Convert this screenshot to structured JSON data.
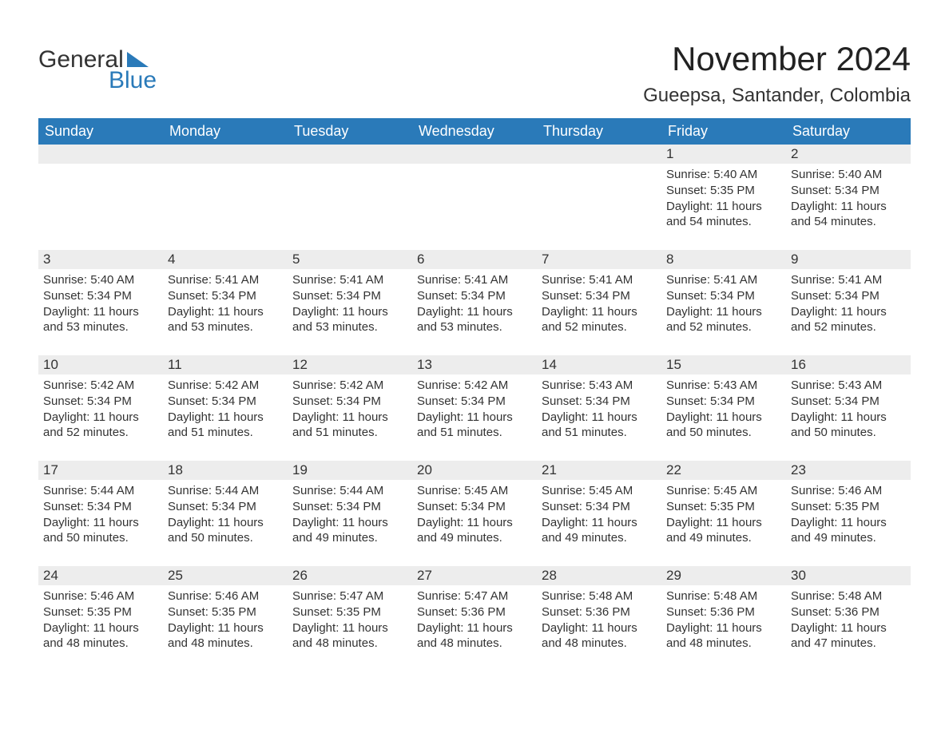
{
  "logo": {
    "word1": "General",
    "word2": "Blue",
    "shape_color": "#2a7ab9",
    "text_color_dark": "#333333",
    "text_color_blue": "#2a7ab9"
  },
  "title": "November 2024",
  "location": "Gueepsa, Santander, Colombia",
  "colors": {
    "header_bg": "#2a7ab9",
    "header_text": "#ffffff",
    "daynum_bg": "#ededed",
    "body_text": "#333333",
    "rule": "#2a7ab9",
    "page_bg": "#ffffff"
  },
  "fonts": {
    "family": "Arial, Helvetica, sans-serif",
    "title_size_pt": 32,
    "location_size_pt": 18,
    "dayhead_size_pt": 14,
    "daynum_size_pt": 13,
    "body_size_pt": 11
  },
  "calendar": {
    "type": "table",
    "columns": [
      "Sunday",
      "Monday",
      "Tuesday",
      "Wednesday",
      "Thursday",
      "Friday",
      "Saturday"
    ],
    "weeks": [
      [
        null,
        null,
        null,
        null,
        null,
        {
          "n": "1",
          "sunrise": "5:40 AM",
          "sunset": "5:35 PM",
          "daylight": "11 hours and 54 minutes."
        },
        {
          "n": "2",
          "sunrise": "5:40 AM",
          "sunset": "5:34 PM",
          "daylight": "11 hours and 54 minutes."
        }
      ],
      [
        {
          "n": "3",
          "sunrise": "5:40 AM",
          "sunset": "5:34 PM",
          "daylight": "11 hours and 53 minutes."
        },
        {
          "n": "4",
          "sunrise": "5:41 AM",
          "sunset": "5:34 PM",
          "daylight": "11 hours and 53 minutes."
        },
        {
          "n": "5",
          "sunrise": "5:41 AM",
          "sunset": "5:34 PM",
          "daylight": "11 hours and 53 minutes."
        },
        {
          "n": "6",
          "sunrise": "5:41 AM",
          "sunset": "5:34 PM",
          "daylight": "11 hours and 53 minutes."
        },
        {
          "n": "7",
          "sunrise": "5:41 AM",
          "sunset": "5:34 PM",
          "daylight": "11 hours and 52 minutes."
        },
        {
          "n": "8",
          "sunrise": "5:41 AM",
          "sunset": "5:34 PM",
          "daylight": "11 hours and 52 minutes."
        },
        {
          "n": "9",
          "sunrise": "5:41 AM",
          "sunset": "5:34 PM",
          "daylight": "11 hours and 52 minutes."
        }
      ],
      [
        {
          "n": "10",
          "sunrise": "5:42 AM",
          "sunset": "5:34 PM",
          "daylight": "11 hours and 52 minutes."
        },
        {
          "n": "11",
          "sunrise": "5:42 AM",
          "sunset": "5:34 PM",
          "daylight": "11 hours and 51 minutes."
        },
        {
          "n": "12",
          "sunrise": "5:42 AM",
          "sunset": "5:34 PM",
          "daylight": "11 hours and 51 minutes."
        },
        {
          "n": "13",
          "sunrise": "5:42 AM",
          "sunset": "5:34 PM",
          "daylight": "11 hours and 51 minutes."
        },
        {
          "n": "14",
          "sunrise": "5:43 AM",
          "sunset": "5:34 PM",
          "daylight": "11 hours and 51 minutes."
        },
        {
          "n": "15",
          "sunrise": "5:43 AM",
          "sunset": "5:34 PM",
          "daylight": "11 hours and 50 minutes."
        },
        {
          "n": "16",
          "sunrise": "5:43 AM",
          "sunset": "5:34 PM",
          "daylight": "11 hours and 50 minutes."
        }
      ],
      [
        {
          "n": "17",
          "sunrise": "5:44 AM",
          "sunset": "5:34 PM",
          "daylight": "11 hours and 50 minutes."
        },
        {
          "n": "18",
          "sunrise": "5:44 AM",
          "sunset": "5:34 PM",
          "daylight": "11 hours and 50 minutes."
        },
        {
          "n": "19",
          "sunrise": "5:44 AM",
          "sunset": "5:34 PM",
          "daylight": "11 hours and 49 minutes."
        },
        {
          "n": "20",
          "sunrise": "5:45 AM",
          "sunset": "5:34 PM",
          "daylight": "11 hours and 49 minutes."
        },
        {
          "n": "21",
          "sunrise": "5:45 AM",
          "sunset": "5:34 PM",
          "daylight": "11 hours and 49 minutes."
        },
        {
          "n": "22",
          "sunrise": "5:45 AM",
          "sunset": "5:35 PM",
          "daylight": "11 hours and 49 minutes."
        },
        {
          "n": "23",
          "sunrise": "5:46 AM",
          "sunset": "5:35 PM",
          "daylight": "11 hours and 49 minutes."
        }
      ],
      [
        {
          "n": "24",
          "sunrise": "5:46 AM",
          "sunset": "5:35 PM",
          "daylight": "11 hours and 48 minutes."
        },
        {
          "n": "25",
          "sunrise": "5:46 AM",
          "sunset": "5:35 PM",
          "daylight": "11 hours and 48 minutes."
        },
        {
          "n": "26",
          "sunrise": "5:47 AM",
          "sunset": "5:35 PM",
          "daylight": "11 hours and 48 minutes."
        },
        {
          "n": "27",
          "sunrise": "5:47 AM",
          "sunset": "5:36 PM",
          "daylight": "11 hours and 48 minutes."
        },
        {
          "n": "28",
          "sunrise": "5:48 AM",
          "sunset": "5:36 PM",
          "daylight": "11 hours and 48 minutes."
        },
        {
          "n": "29",
          "sunrise": "5:48 AM",
          "sunset": "5:36 PM",
          "daylight": "11 hours and 48 minutes."
        },
        {
          "n": "30",
          "sunrise": "5:48 AM",
          "sunset": "5:36 PM",
          "daylight": "11 hours and 47 minutes."
        }
      ]
    ],
    "labels": {
      "sunrise_prefix": "Sunrise: ",
      "sunset_prefix": "Sunset: ",
      "daylight_prefix": "Daylight: "
    }
  }
}
